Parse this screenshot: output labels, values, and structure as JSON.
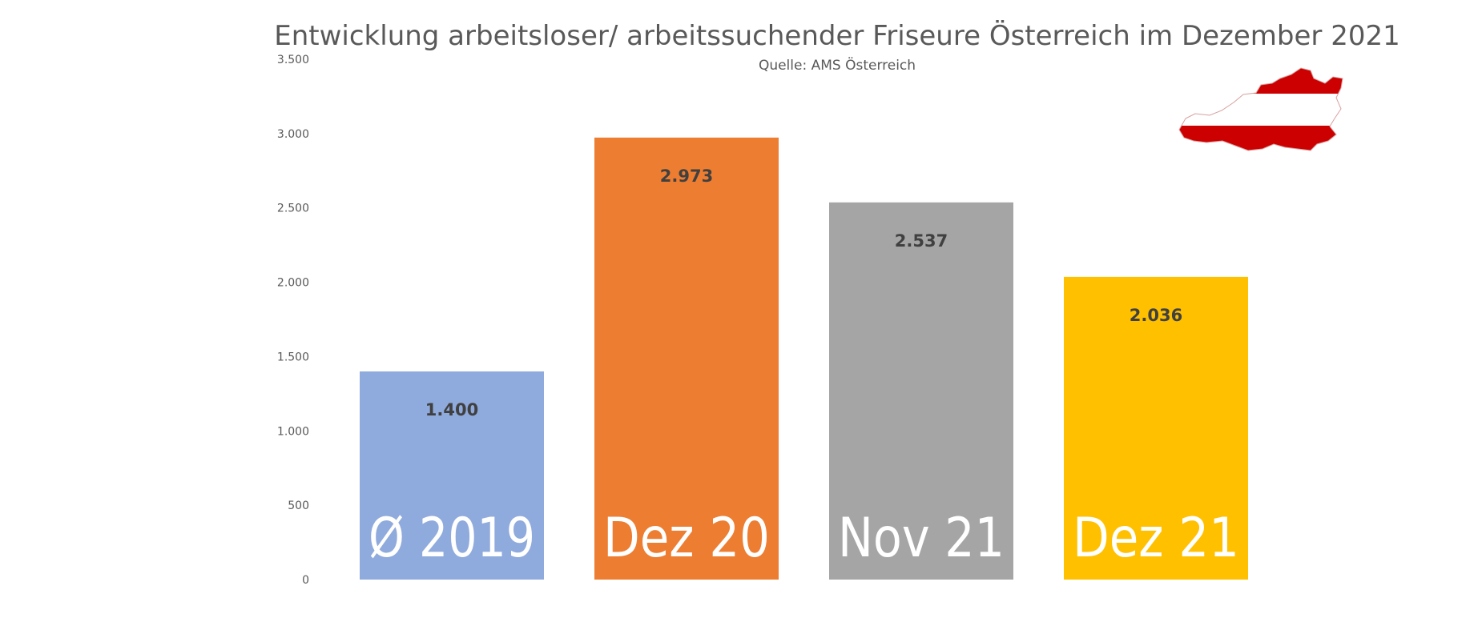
{
  "chart_data": {
    "type": "bar",
    "title": "Entwicklung arbeitsloser/ arbeitssuchender Friseure Österreich im Dezember 2021",
    "subtitle": "Quelle: AMS Österreich",
    "xlabel": "",
    "ylabel": "",
    "ylim": [
      0,
      3500
    ],
    "yticks": [
      0,
      500,
      1000,
      1500,
      2000,
      2500,
      3000,
      3500
    ],
    "ytick_labels": [
      "0",
      "500",
      "1.000",
      "1.500",
      "2.000",
      "2.500",
      "3.000",
      "3.500"
    ],
    "categories": [
      "Ø 2019",
      "Dez 20",
      "Nov 21",
      "Dez 21"
    ],
    "values": [
      1400,
      2973,
      2537,
      2036
    ],
    "value_labels": [
      "1.400",
      "2.973",
      "2.537",
      "2.036"
    ],
    "colors": [
      "#8faadc",
      "#ed7d31",
      "#a5a5a5",
      "#ffc000"
    ],
    "grid": false,
    "legend": "none"
  },
  "decoration": {
    "icon": "austria-flag-map-icon",
    "flag_colors": [
      "#cc0000",
      "#ffffff",
      "#cc0000"
    ]
  }
}
